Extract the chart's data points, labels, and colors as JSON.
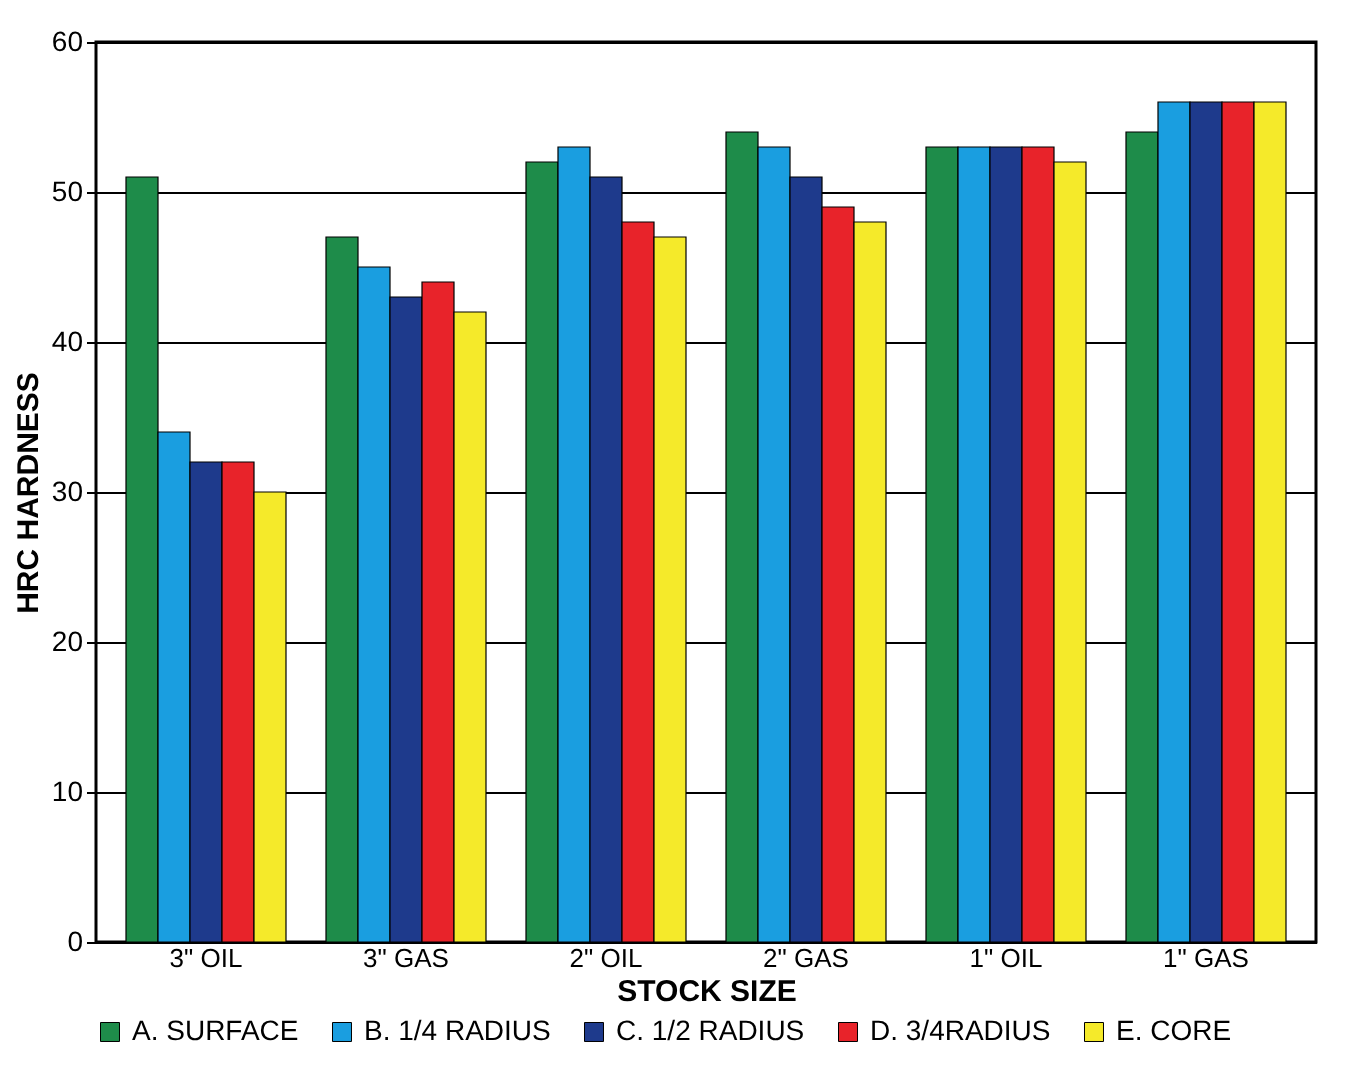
{
  "chart_data": {
    "type": "bar",
    "xlabel": "STOCK SIZE",
    "ylabel": "HRC HARDNESS",
    "categories": [
      "3\" OIL",
      "3\" GAS",
      "2\" OIL",
      "2\" GAS",
      "1\" OIL",
      "1\" GAS"
    ],
    "series": [
      {
        "name": "A. SURFACE",
        "color": "#1e8c4a",
        "values": [
          51,
          47,
          52,
          54,
          53,
          54
        ]
      },
      {
        "name": "B. 1/4 RADIUS",
        "color": "#1a9ee0",
        "values": [
          34,
          45,
          53,
          53,
          53,
          56
        ]
      },
      {
        "name": "C. 1/2 RADIUS",
        "color": "#1e3a8c",
        "values": [
          32,
          43,
          51,
          51,
          53,
          56
        ]
      },
      {
        "name": "D. 3/4RADIUS",
        "color": "#e8232a",
        "values": [
          32,
          44,
          48,
          49,
          53,
          56
        ]
      },
      {
        "name": "E. CORE",
        "color": "#f5ea2a",
        "values": [
          30,
          42,
          47,
          48,
          52,
          56
        ]
      }
    ],
    "ylim": [
      0,
      60
    ],
    "yticks": [
      0,
      10,
      20,
      30,
      40,
      50,
      60
    ],
    "grid": "y",
    "legend": "bottom"
  }
}
